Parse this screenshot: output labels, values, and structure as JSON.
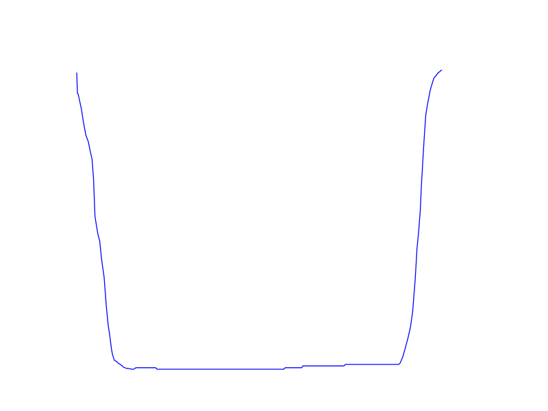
{
  "chart_data": {
    "type": "line",
    "title": "",
    "xlabel": "",
    "ylabel": "",
    "axes_visible": false,
    "grid": false,
    "legend": "none",
    "xlim": [
      0,
      100
    ],
    "ylim": [
      0,
      100
    ],
    "series": [
      {
        "color": "#0000ff",
        "x": [
          0.0,
          0.2,
          0.4,
          1.0,
          1.3,
          1.8,
          2.5,
          3.2,
          3.6,
          4.2,
          4.6,
          5.0,
          5.4,
          5.8,
          6.3,
          6.7,
          7.0,
          7.5,
          8.1,
          8.6,
          9.1,
          9.5,
          9.8,
          10.3,
          11.0,
          11.3,
          11.9,
          12.3,
          12.8,
          13.6,
          14.4,
          15.1,
          15.6,
          16.2,
          16.7,
          17.4,
          18.2,
          19.1,
          21.6,
          22.0,
          30.0,
          40.0,
          50.0,
          56.7,
          57.1,
          61.6,
          62.0,
          68.0,
          73.2,
          73.6,
          80.0,
          88.2,
          88.6,
          89.3,
          90.0,
          90.7,
          91.4,
          92.0,
          92.7,
          93.2,
          93.7,
          94.1,
          94.4,
          94.8,
          95.2,
          95.6,
          96.0,
          96.4,
          96.7,
          97.0,
          97.3,
          97.6,
          97.9,
          98.3,
          98.6,
          98.9,
          99.2,
          99.6,
          100.0
        ],
        "y": [
          99.1,
          92.1,
          91.9,
          88.5,
          86.8,
          82.8,
          78.2,
          75.9,
          73.4,
          70.1,
          63.7,
          51.1,
          48.0,
          45.1,
          42.8,
          38.0,
          35.0,
          30.8,
          21.1,
          14.9,
          10.8,
          6.9,
          4.9,
          3.0,
          2.5,
          2.1,
          1.6,
          1.3,
          0.7,
          0.3,
          0.2,
          0.0,
          0.0,
          0.5,
          0.5,
          0.5,
          0.5,
          0.5,
          0.5,
          0.0,
          0.0,
          0.0,
          0.0,
          0.0,
          0.5,
          0.5,
          1.1,
          1.1,
          1.1,
          1.6,
          1.6,
          1.6,
          2.1,
          4.1,
          7.1,
          10.3,
          14.0,
          19.1,
          29.9,
          40.3,
          46.7,
          53.1,
          61.2,
          69.7,
          77.8,
          84.8,
          88.0,
          90.5,
          92.5,
          94.0,
          95.2,
          96.4,
          97.4,
          97.9,
          98.4,
          98.9,
          99.2,
          99.6,
          100.0
        ]
      }
    ]
  }
}
